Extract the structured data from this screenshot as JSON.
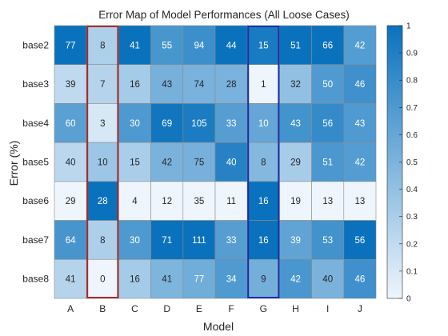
{
  "chart_data": {
    "type": "heatmap",
    "title": "Error Map of Model Performances (All Loose Cases)",
    "xlabel": "Model",
    "ylabel": "Error (%)",
    "x_categories": [
      "A",
      "B",
      "C",
      "D",
      "E",
      "F",
      "G",
      "H",
      "I",
      "J"
    ],
    "y_categories": [
      "base2",
      "base3",
      "base4",
      "base5",
      "base6",
      "base7",
      "base8"
    ],
    "values": [
      [
        77,
        8,
        41,
        55,
        94,
        44,
        15,
        51,
        66,
        42
      ],
      [
        39,
        7,
        16,
        43,
        74,
        28,
        1,
        32,
        50,
        46
      ],
      [
        60,
        3,
        30,
        69,
        105,
        33,
        10,
        43,
        56,
        43
      ],
      [
        40,
        10,
        15,
        42,
        75,
        40,
        8,
        29,
        51,
        42
      ],
      [
        29,
        28,
        4,
        12,
        35,
        11,
        16,
        19,
        13,
        13
      ],
      [
        64,
        8,
        30,
        71,
        111,
        33,
        16,
        39,
        53,
        56
      ],
      [
        41,
        0,
        16,
        41,
        77,
        34,
        9,
        42,
        40,
        46
      ]
    ],
    "colorbar": {
      "range": [
        0,
        1
      ],
      "ticks": [
        "0",
        "0.1",
        "0.2",
        "0.3",
        "0.4",
        "0.5",
        "0.6",
        "0.7",
        "0.8",
        "0.9",
        "1"
      ],
      "low_color": "#eef5fc",
      "high_color": "#0a72bd"
    },
    "highlighted_columns": [
      {
        "category": "B",
        "border_color": "#a52a2a"
      },
      {
        "category": "G",
        "border_color": "#1a2fa6"
      }
    ]
  }
}
